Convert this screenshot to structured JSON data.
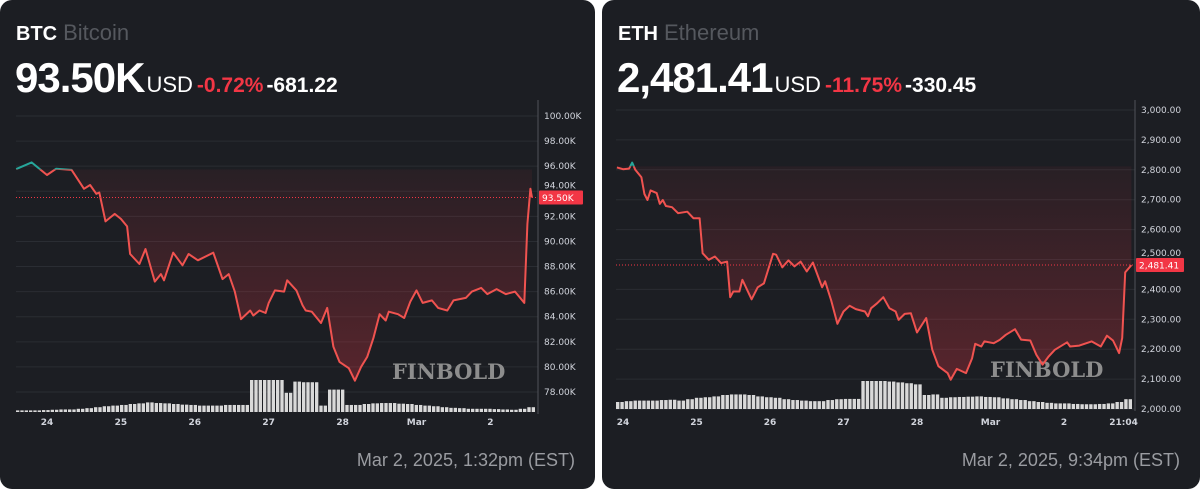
{
  "colors": {
    "up": "#26a69a",
    "down": "#f23645",
    "line_down": "#f05350",
    "text": "#d1d4dc",
    "card_bg": "#1c1e23",
    "volume": "#d9d9d9"
  },
  "chart_data": [
    {
      "type": "line",
      "symbol": "BTC",
      "name": "Bitcoin",
      "price": "93.50K",
      "currency": "USD",
      "change_pct": "-0.72%",
      "change_abs": "-681.22",
      "timestamp": "Mar 2, 2025, 1:32pm (EST)",
      "watermark": "FINBOLD",
      "unit": "K",
      "ylim": [
        76.5,
        101.5
      ],
      "yticks": [
        "78.00K",
        "80.00K",
        "82.00K",
        "84.00K",
        "86.00K",
        "88.00K",
        "90.00K",
        "92.00K",
        "94.00K",
        "96.00K",
        "98.00K",
        "100.00K"
      ],
      "ytick_values": [
        78,
        80,
        82,
        84,
        86,
        88,
        90,
        92,
        94,
        96,
        98,
        100
      ],
      "xticks": [
        "24",
        "25",
        "26",
        "27",
        "28",
        "Mar",
        "2"
      ],
      "current_value": 93.5,
      "current_label": "93.50K",
      "baseline_value": 95.75,
      "grid": true,
      "points": [
        [
          "2025-02-23T14:00",
          95.77
        ],
        [
          "2025-02-23T19:00",
          96.3
        ],
        [
          "2025-02-24T00:00",
          95.3
        ],
        [
          "2025-02-24T03:00",
          95.8
        ],
        [
          "2025-02-24T08:00",
          95.7
        ],
        [
          "2025-02-24T12:00",
          94.2
        ],
        [
          "2025-02-24T14:00",
          94.5
        ],
        [
          "2025-02-24T16:00",
          93.8
        ],
        [
          "2025-02-24T17:00",
          93.9
        ],
        [
          "2025-02-24T19:00",
          91.6
        ],
        [
          "2025-02-24T22:00",
          92.2
        ],
        [
          "2025-02-25T00:00",
          91.8
        ],
        [
          "2025-02-25T02:00",
          91.2
        ],
        [
          "2025-02-25T03:00",
          89.0
        ],
        [
          "2025-02-25T06:00",
          88.2
        ],
        [
          "2025-02-25T08:00",
          89.4
        ],
        [
          "2025-02-25T11:00",
          86.8
        ],
        [
          "2025-02-25T13:00",
          87.4
        ],
        [
          "2025-02-25T14:00",
          86.9
        ],
        [
          "2025-02-25T17:00",
          89.1
        ],
        [
          "2025-02-25T20:00",
          88.1
        ],
        [
          "2025-02-25T22:00",
          89.0
        ],
        [
          "2025-02-26T01:00",
          88.5
        ],
        [
          "2025-02-26T06:00",
          89.1
        ],
        [
          "2025-02-26T09:00",
          87.0
        ],
        [
          "2025-02-26T11:00",
          87.4
        ],
        [
          "2025-02-26T13:00",
          86.0
        ],
        [
          "2025-02-26T15:00",
          83.8
        ],
        [
          "2025-02-26T18:00",
          84.5
        ],
        [
          "2025-02-26T19:00",
          84.1
        ],
        [
          "2025-02-26T21:00",
          84.5
        ],
        [
          "2025-02-26T23:00",
          84.3
        ],
        [
          "2025-02-27T00:00",
          85.1
        ],
        [
          "2025-02-27T02:00",
          86.1
        ],
        [
          "2025-02-27T05:00",
          86.0
        ],
        [
          "2025-02-27T06:00",
          86.9
        ],
        [
          "2025-02-27T09:00",
          86.1
        ],
        [
          "2025-02-27T11:00",
          84.9
        ],
        [
          "2025-02-27T12:00",
          84.5
        ],
        [
          "2025-02-27T14:00",
          84.4
        ],
        [
          "2025-02-27T17:00",
          83.5
        ],
        [
          "2025-02-27T19:00",
          84.7
        ],
        [
          "2025-02-27T21:00",
          81.6
        ],
        [
          "2025-02-27T23:00",
          80.4
        ],
        [
          "2025-02-28T02:00",
          79.9
        ],
        [
          "2025-02-28T04:00",
          78.9
        ],
        [
          "2025-02-28T06:00",
          80.0
        ],
        [
          "2025-02-28T08:00",
          80.8
        ],
        [
          "2025-02-28T10:00",
          82.3
        ],
        [
          "2025-02-28T12:00",
          84.2
        ],
        [
          "2025-02-28T14:00",
          83.7
        ],
        [
          "2025-02-28T15:00",
          84.4
        ],
        [
          "2025-02-28T18:00",
          84.2
        ],
        [
          "2025-02-28T20:00",
          83.9
        ],
        [
          "2025-02-28T22:00",
          85.2
        ],
        [
          "2025-03-01T00:00",
          86.1
        ],
        [
          "2025-03-01T02:00",
          85.1
        ],
        [
          "2025-03-01T05:00",
          85.3
        ],
        [
          "2025-03-01T07:00",
          84.7
        ],
        [
          "2025-03-01T10:00",
          84.5
        ],
        [
          "2025-03-01T12:00",
          85.3
        ],
        [
          "2025-03-01T16:00",
          85.5
        ],
        [
          "2025-03-01T18:00",
          86.0
        ],
        [
          "2025-03-01T21:00",
          86.3
        ],
        [
          "2025-03-01T23:00",
          85.8
        ],
        [
          "2025-03-02T02:00",
          86.2
        ],
        [
          "2025-03-02T05:00",
          85.8
        ],
        [
          "2025-03-02T08:00",
          86.0
        ],
        [
          "2025-03-02T11:00",
          85.1
        ],
        [
          "2025-03-02T12:00",
          91.4
        ],
        [
          "2025-03-02T13:00",
          94.2
        ],
        [
          "2025-03-02T13:30",
          93.5
        ]
      ],
      "volume_relative": [
        0.05,
        0.05,
        0.05,
        0.06,
        0.07,
        0.08,
        0.08,
        0.1,
        0.12,
        0.15,
        0.18,
        0.2,
        0.22,
        0.25,
        0.27,
        0.3,
        0.28,
        0.27,
        0.25,
        0.23,
        0.22,
        0.2,
        0.2,
        0.2,
        0.22,
        0.22,
        0.22,
        1,
        1,
        1,
        1,
        0.6,
        0.95,
        0.93,
        0.93,
        0.2,
        0.7,
        0.7,
        0.22,
        0.22,
        0.25,
        0.27,
        0.28,
        0.28,
        0.26,
        0.25,
        0.22,
        0.2,
        0.18,
        0.15,
        0.13,
        0.12,
        0.1,
        0.1,
        0.1,
        0.09,
        0.08,
        0.07,
        0.1,
        0.15
      ]
    },
    {
      "type": "line",
      "symbol": "ETH",
      "name": "Ethereum",
      "price": "2,481.41",
      "currency": "USD",
      "change_pct": "-11.75%",
      "change_abs": "-330.45",
      "timestamp": "Mar 2, 2025, 9:34pm (EST)",
      "watermark": "FINBOLD",
      "unit": "USD",
      "ylim": [
        2000,
        3055
      ],
      "yticks": [
        "2,000.00",
        "2,100.00",
        "2,200.00",
        "2,300.00",
        "2,400.00",
        "2,500.00",
        "2,600.00",
        "2,700.00",
        "2,800.00",
        "2,900.00",
        "3,000.00"
      ],
      "ytick_values": [
        2000,
        2100,
        2200,
        2300,
        2400,
        2500,
        2600,
        2700,
        2800,
        2900,
        3000
      ],
      "xticks": [
        "24",
        "25",
        "26",
        "27",
        "28",
        "Mar",
        "2",
        "21:04"
      ],
      "current_value": 2481.41,
      "current_label": "2,481.41",
      "baseline_value": 2812,
      "grid": true,
      "points": [
        [
          "2025-02-23T22:00",
          2808
        ],
        [
          "2025-02-24T00:00",
          2802
        ],
        [
          "2025-02-24T02:00",
          2804
        ],
        [
          "2025-02-24T03:00",
          2824
        ],
        [
          "2025-02-24T04:00",
          2800
        ],
        [
          "2025-02-24T06:00",
          2775
        ],
        [
          "2025-02-24T07:00",
          2719
        ],
        [
          "2025-02-24T08:00",
          2699
        ],
        [
          "2025-02-24T09:00",
          2731
        ],
        [
          "2025-02-24T11:00",
          2722
        ],
        [
          "2025-02-24T12:00",
          2686
        ],
        [
          "2025-02-24T13:00",
          2699
        ],
        [
          "2025-02-24T14:00",
          2679
        ],
        [
          "2025-02-24T16:00",
          2675
        ],
        [
          "2025-02-24T18:00",
          2655
        ],
        [
          "2025-02-24T21:00",
          2660
        ],
        [
          "2025-02-24T23:00",
          2638
        ],
        [
          "2025-02-25T01:00",
          2638
        ],
        [
          "2025-02-25T02:00",
          2521
        ],
        [
          "2025-02-25T04:00",
          2499
        ],
        [
          "2025-02-25T06:00",
          2510
        ],
        [
          "2025-02-25T08:00",
          2488
        ],
        [
          "2025-02-25T10:00",
          2493
        ],
        [
          "2025-02-25T11:00",
          2374
        ],
        [
          "2025-02-25T12:00",
          2393
        ],
        [
          "2025-02-25T14:00",
          2393
        ],
        [
          "2025-02-25T15:00",
          2432
        ],
        [
          "2025-02-25T18:00",
          2367
        ],
        [
          "2025-02-25T20:00",
          2407
        ],
        [
          "2025-02-25T22:00",
          2420
        ],
        [
          "2025-02-26T01:00",
          2519
        ],
        [
          "2025-02-26T02:00",
          2516
        ],
        [
          "2025-02-26T04:00",
          2474
        ],
        [
          "2025-02-26T06:00",
          2497
        ],
        [
          "2025-02-26T08:00",
          2477
        ],
        [
          "2025-02-26T10:00",
          2493
        ],
        [
          "2025-02-26T12:00",
          2460
        ],
        [
          "2025-02-26T14:00",
          2490
        ],
        [
          "2025-02-26T17:00",
          2407
        ],
        [
          "2025-02-26T18:00",
          2427
        ],
        [
          "2025-02-26T20:00",
          2363
        ],
        [
          "2025-02-26T22:00",
          2285
        ],
        [
          "2025-02-27T00:00",
          2326
        ],
        [
          "2025-02-27T02:00",
          2345
        ],
        [
          "2025-02-27T04:00",
          2334
        ],
        [
          "2025-02-27T07:00",
          2326
        ],
        [
          "2025-02-27T08:00",
          2310
        ],
        [
          "2025-02-27T09:00",
          2337
        ],
        [
          "2025-02-27T11:00",
          2354
        ],
        [
          "2025-02-27T13:00",
          2374
        ],
        [
          "2025-02-27T15:00",
          2337
        ],
        [
          "2025-02-27T17:00",
          2326
        ],
        [
          "2025-02-27T18:00",
          2298
        ],
        [
          "2025-02-27T20:00",
          2318
        ],
        [
          "2025-02-27T22:00",
          2320
        ],
        [
          "2025-02-28T00:00",
          2256
        ],
        [
          "2025-02-28T03:00",
          2304
        ],
        [
          "2025-02-28T05:00",
          2198
        ],
        [
          "2025-02-28T07:00",
          2143
        ],
        [
          "2025-02-28T10:00",
          2120
        ],
        [
          "2025-02-28T11:00",
          2098
        ],
        [
          "2025-02-28T13:00",
          2134
        ],
        [
          "2025-02-28T16:00",
          2120
        ],
        [
          "2025-02-28T18:00",
          2170
        ],
        [
          "2025-02-28T19:00",
          2218
        ],
        [
          "2025-02-28T21:00",
          2209
        ],
        [
          "2025-02-28T22:00",
          2226
        ],
        [
          "2025-03-01T01:00",
          2220
        ],
        [
          "2025-03-01T03:00",
          2231
        ],
        [
          "2025-03-01T05:00",
          2248
        ],
        [
          "2025-03-01T08:00",
          2267
        ],
        [
          "2025-03-01T10:00",
          2232
        ],
        [
          "2025-03-01T13:00",
          2229
        ],
        [
          "2025-03-01T15:00",
          2181
        ],
        [
          "2025-03-01T17:00",
          2148
        ],
        [
          "2025-03-01T19:00",
          2176
        ],
        [
          "2025-03-01T21:00",
          2198
        ],
        [
          "2025-03-02T01:00",
          2223
        ],
        [
          "2025-03-02T02:00",
          2209
        ],
        [
          "2025-03-02T05:00",
          2212
        ],
        [
          "2025-03-02T09:00",
          2226
        ],
        [
          "2025-03-02T12:00",
          2209
        ],
        [
          "2025-03-02T14:00",
          2245
        ],
        [
          "2025-03-02T16:00",
          2229
        ],
        [
          "2025-03-02T18:00",
          2187
        ],
        [
          "2025-03-02T19:00",
          2237
        ],
        [
          "2025-03-02T20:00",
          2457
        ],
        [
          "2025-03-02T22:00",
          2481.41
        ]
      ],
      "volume_relative": [
        0.25,
        0.28,
        0.3,
        0.3,
        0.3,
        0.32,
        0.33,
        0.3,
        0.35,
        0.4,
        0.42,
        0.45,
        0.5,
        0.52,
        0.52,
        0.5,
        0.45,
        0.42,
        0.4,
        0.35,
        0.32,
        0.3,
        0.28,
        0.28,
        0.32,
        0.35,
        0.36,
        0.36,
        1,
        1,
        1,
        0.98,
        0.95,
        0.92,
        0.88,
        0.5,
        0.52,
        0.4,
        0.42,
        0.43,
        0.44,
        0.45,
        0.43,
        0.42,
        0.38,
        0.35,
        0.32,
        0.28,
        0.25,
        0.22,
        0.2,
        0.2,
        0.18,
        0.17,
        0.17,
        0.18,
        0.2,
        0.25,
        0.35
      ]
    }
  ]
}
